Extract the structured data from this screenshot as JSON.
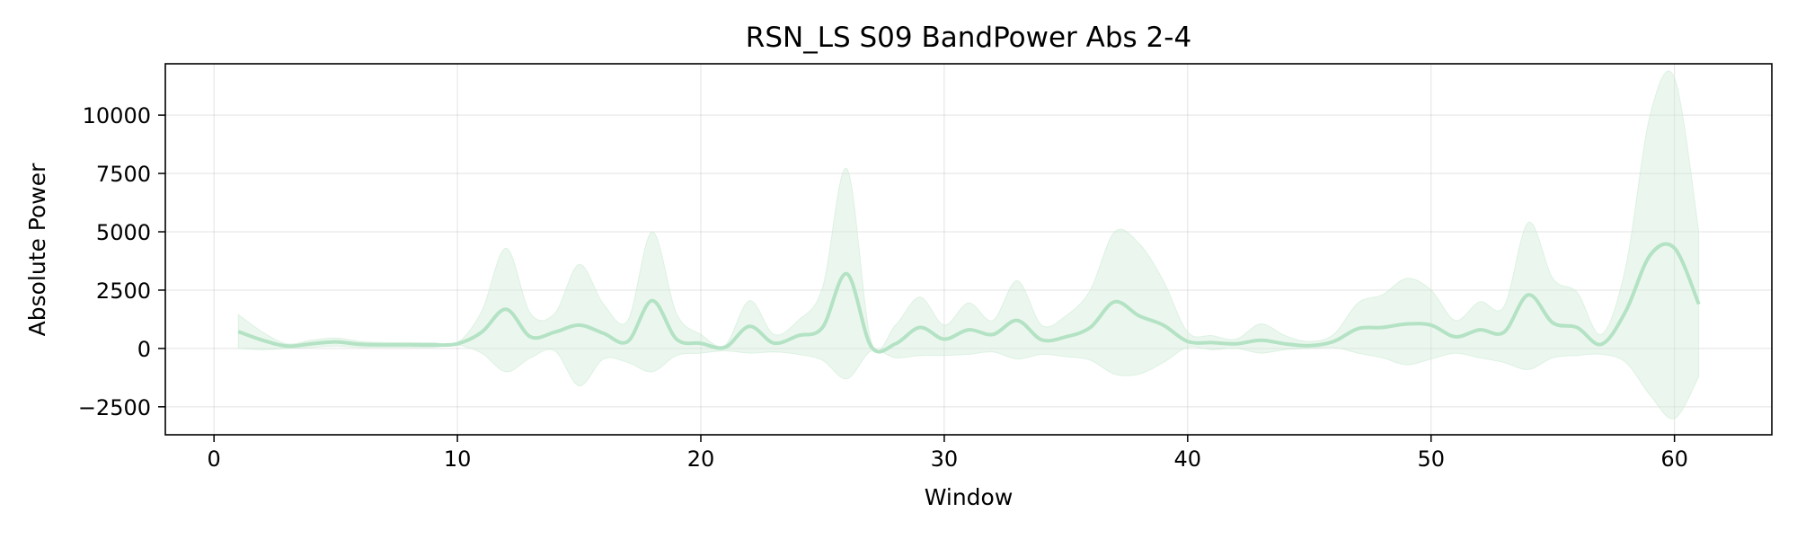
{
  "chart_data": {
    "type": "line",
    "title": "RSN_LS S09 BandPower Abs 2-4",
    "xlabel": "Window",
    "ylabel": "Absolute Power",
    "xlim": [
      -2,
      64
    ],
    "ylim": [
      -3700,
      12200
    ],
    "xticks": [
      0,
      10,
      20,
      30,
      40,
      50,
      60
    ],
    "yticks": [
      -2500,
      0,
      2500,
      5000,
      7500,
      10000
    ],
    "grid": true,
    "colors": {
      "line": "#b4e2c4",
      "band": "#cdebd5"
    },
    "series": [
      {
        "x": [
          1,
          2,
          3,
          4,
          5,
          6,
          7,
          8,
          9,
          10,
          11,
          12,
          13,
          14,
          15,
          16,
          17,
          18,
          19,
          20,
          21,
          22,
          23,
          24,
          25,
          26,
          27,
          28,
          29,
          30,
          31,
          32,
          33,
          34,
          35,
          36,
          37,
          38,
          39,
          40,
          41,
          42,
          43,
          44,
          45,
          46,
          47,
          48,
          49,
          50,
          51,
          52,
          53,
          54,
          55,
          56,
          57,
          58,
          59,
          60,
          61
        ],
        "y": [
          720,
          350,
          100,
          200,
          280,
          180,
          160,
          160,
          150,
          200,
          700,
          1680,
          500,
          700,
          1000,
          650,
          300,
          2050,
          400,
          220,
          50,
          950,
          230,
          550,
          900,
          3200,
          80,
          200,
          900,
          400,
          800,
          600,
          1200,
          370,
          500,
          900,
          2000,
          1400,
          1000,
          300,
          250,
          200,
          350,
          200,
          120,
          300,
          850,
          900,
          1050,
          1000,
          500,
          800,
          700,
          2300,
          1100,
          900,
          180,
          1600,
          4000,
          4300,
          1900
        ],
        "upper": [
          1450,
          700,
          200,
          350,
          450,
          300,
          250,
          250,
          250,
          250,
          1600,
          4300,
          1500,
          1500,
          3600,
          1900,
          1200,
          5000,
          1500,
          600,
          150,
          2050,
          600,
          1200,
          2600,
          7700,
          300,
          1000,
          2200,
          1000,
          1950,
          1200,
          2900,
          1000,
          1400,
          2500,
          5000,
          4500,
          2900,
          700,
          550,
          400,
          1050,
          550,
          300,
          600,
          1950,
          2300,
          3000,
          2500,
          1200,
          2000,
          1800,
          5400,
          3000,
          2400,
          600,
          3500,
          10000,
          11600,
          5000
        ],
        "lower": [
          0,
          -50,
          0,
          50,
          100,
          50,
          50,
          50,
          50,
          150,
          -200,
          -1000,
          -400,
          -100,
          -1600,
          -450,
          -600,
          -1000,
          -300,
          -200,
          -100,
          -200,
          -150,
          -250,
          -500,
          -1300,
          -100,
          -400,
          -300,
          -300,
          -250,
          -150,
          -450,
          -250,
          -350,
          -500,
          -1100,
          -1100,
          -600,
          50,
          -50,
          0,
          -200,
          -50,
          0,
          50,
          -200,
          -400,
          -700,
          -450,
          -200,
          -400,
          -600,
          -900,
          -400,
          -300,
          -250,
          -600,
          -2000,
          -3000,
          -1200
        ]
      }
    ]
  }
}
